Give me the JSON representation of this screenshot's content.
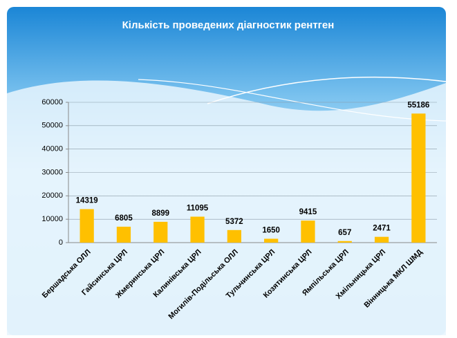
{
  "chart_data": {
    "type": "bar",
    "title": "Кількість проведених діагностик рентген",
    "categories": [
      "Бершадська ОЛЛ",
      "Гайсинська ЦРЛ",
      "Жмеринська ЦРЛ",
      "Калинівська ЦРЛ",
      "Могилів-Подільська ОЛЛ",
      "Тульчинська ЦРЛ",
      "Козятинська ЦРЛ",
      "Ямпільська ЦРЛ",
      "Хмільницька ЦРЛ",
      "Вінницька МКЛ ШМД"
    ],
    "values": [
      14319,
      6805,
      8899,
      11095,
      5372,
      1650,
      9415,
      657,
      2471,
      55186
    ],
    "color": "#ffc000",
    "ylim": [
      0,
      60000
    ],
    "yticks": [
      0,
      10000,
      20000,
      30000,
      40000,
      50000,
      60000
    ],
    "grid": true
  }
}
